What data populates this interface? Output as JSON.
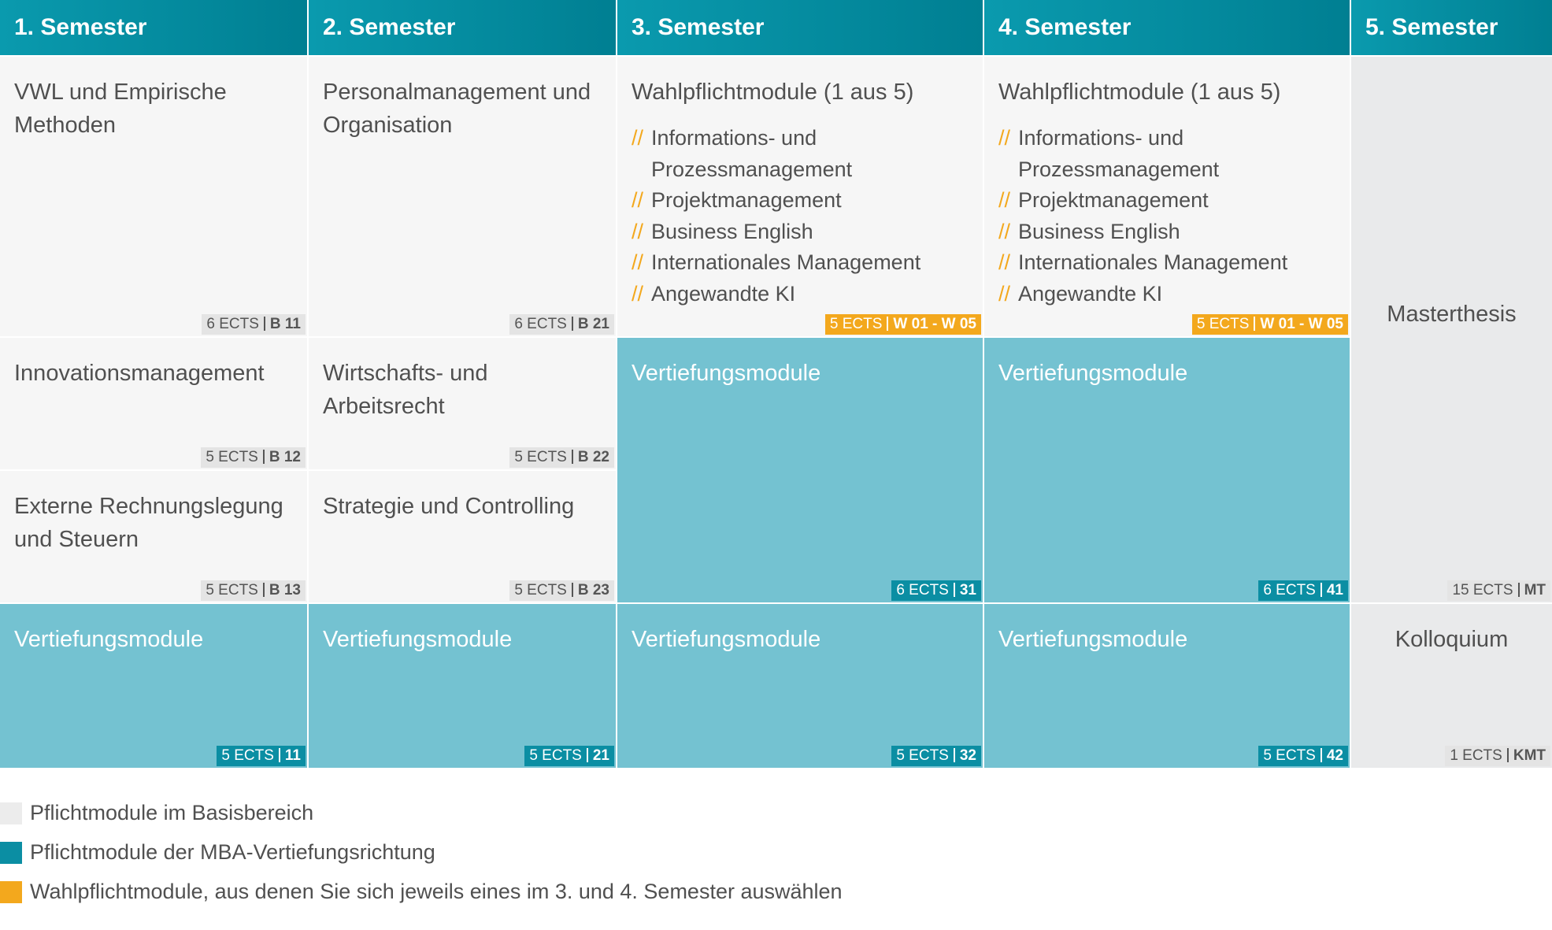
{
  "headers": [
    "1. Semester",
    "2. Semester",
    "3. Semester",
    "4. Semester",
    "5. Semester"
  ],
  "modules": {
    "vwl": {
      "title": "VWL und Empirische Methoden",
      "ects": "6 ECTS",
      "code": "B 11"
    },
    "pers": {
      "title": "Personalmanagement und Organisation",
      "ects": "6 ECTS",
      "code": "B 21"
    },
    "innov": {
      "title": "Innovationsmanagement",
      "ects": "5 ECTS",
      "code": "B 12"
    },
    "recht": {
      "title": "Wirtschafts- und Arbeitsrecht",
      "ects": "5 ECTS",
      "code": "B 22"
    },
    "extern": {
      "title": "Externe Rechnungslegung und Steuern",
      "ects": "5 ECTS",
      "code": "B 13"
    },
    "strat": {
      "title": "Strategie und Controlling",
      "ects": "5 ECTS",
      "code": "B 23"
    },
    "wahl3": {
      "title": "Wahlpflichtmodule (1 aus 5)",
      "ects": "5 ECTS",
      "code": "W 01 - W 05"
    },
    "wahl4": {
      "title": "Wahlpflichtmodule (1 aus 5)",
      "ects": "5 ECTS",
      "code": "W 01 - W 05"
    },
    "v31": {
      "title": "Vertiefungsmodule",
      "ects": "6 ECTS",
      "code": "31"
    },
    "v41": {
      "title": "Vertiefungsmodule",
      "ects": "6 ECTS",
      "code": "41"
    },
    "v11": {
      "title": "Vertiefungsmodule",
      "ects": "5 ECTS",
      "code": "11"
    },
    "v21": {
      "title": "Vertiefungsmodule",
      "ects": "5 ECTS",
      "code": "21"
    },
    "v32": {
      "title": "Vertiefungsmodule",
      "ects": "5 ECTS",
      "code": "32"
    },
    "v42": {
      "title": "Vertiefungsmodule",
      "ects": "5 ECTS",
      "code": "42"
    },
    "thesis": {
      "title": "Masterthesis",
      "ects": "15 ECTS",
      "code": "MT"
    },
    "kollo": {
      "title": "Kolloquium",
      "ects": "1 ECTS",
      "code": "KMT"
    }
  },
  "wahl_options": [
    "Informations- und Prozessmanagement",
    "Projektmanagement",
    "Business English",
    "Internationales Management",
    "Angewandte KI"
  ],
  "option_marker": "//",
  "legend": [
    {
      "label": "Pflichtmodule im Basisbereich",
      "color": "#ececec"
    },
    {
      "label": "Pflichtmodule der MBA-Vertiefungsrichtung",
      "color": "#0b8ea3"
    },
    {
      "label": "Wahlpflichtmodule, aus denen Sie sich jeweils eines im 3. und 4. Semester auswählen",
      "color": "#f3a81d"
    }
  ],
  "colors": {
    "header": "#0a9aae",
    "basis": "#f6f6f6",
    "vertiefung": "#74c2d1",
    "wahl_accent": "#f3a81d"
  }
}
